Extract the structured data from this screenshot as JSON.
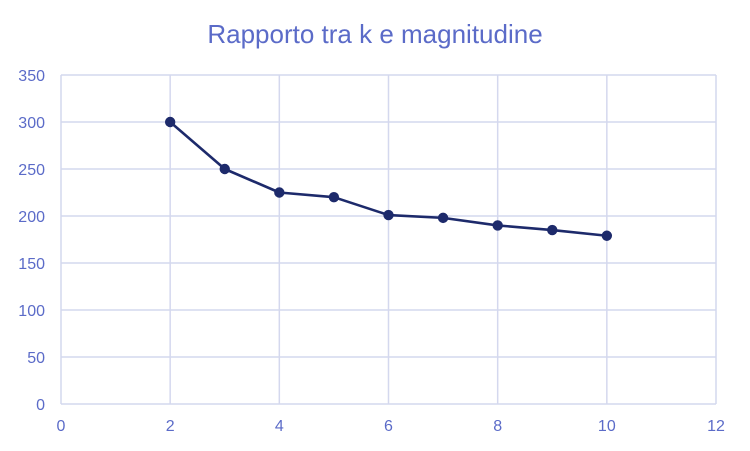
{
  "chart_data": {
    "type": "scatter",
    "title": "Rapporto tra k e magnitudine",
    "xlabel": "",
    "ylabel": "",
    "xlim": [
      0,
      12
    ],
    "ylim": [
      0,
      350
    ],
    "xticks": [
      0,
      2,
      4,
      6,
      8,
      10,
      12
    ],
    "yticks": [
      0,
      50,
      100,
      150,
      200,
      250,
      300,
      350
    ],
    "grid": true,
    "legend": "none",
    "series": [
      {
        "x": [
          2,
          3,
          4,
          5,
          6,
          7,
          8,
          9,
          10
        ],
        "y": [
          300,
          250,
          225,
          220,
          201,
          198,
          190,
          185,
          179
        ]
      }
    ],
    "colors": {
      "title": "#5b6bc8",
      "ticks": "#5b6bc8",
      "grid": "#d4d8ee",
      "series": "#1d2a6b"
    }
  }
}
